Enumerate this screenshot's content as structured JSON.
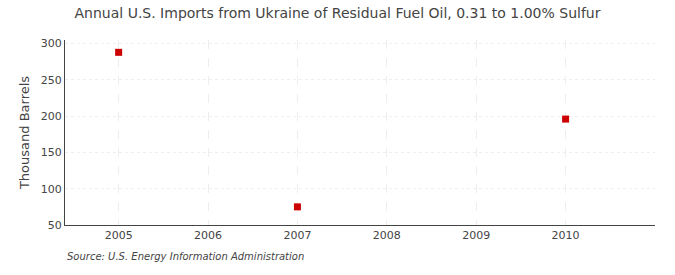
{
  "chart_data": {
    "type": "scatter",
    "title": "Annual U.S. Imports from Ukraine of Residual Fuel Oil, 0.31 to 1.00% Sulfur",
    "ylabel": "Thousand Barrels",
    "annotations": [
      "Source: U.S. Energy Information Administration"
    ],
    "x": [
      2005,
      2007,
      2010
    ],
    "values": [
      288,
      75,
      196
    ],
    "color": "#cc0000",
    "marker": "square",
    "xlim": [
      2004.4,
      2011.0
    ],
    "ylim": [
      50,
      305
    ],
    "xticks": [
      2005,
      2006,
      2007,
      2008,
      2009,
      2010
    ],
    "yticks": [
      50,
      100,
      150,
      200,
      250,
      300
    ],
    "grid": true
  }
}
